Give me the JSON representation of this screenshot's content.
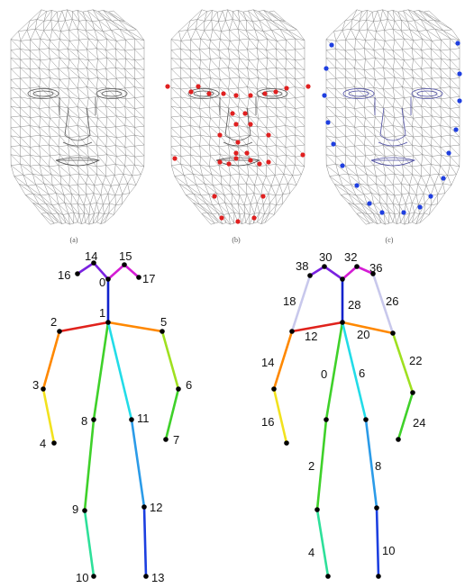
{
  "face_panels": [
    {
      "caption": "(a)",
      "landmark_color": ""
    },
    {
      "caption": "(b)",
      "landmark_color": "#e02020"
    },
    {
      "caption": "(c)",
      "landmark_color": "#1f3fe0"
    }
  ],
  "skeleton_left": {
    "labels": [
      "0",
      "1",
      "2",
      "3",
      "4",
      "5",
      "6",
      "7",
      "8",
      "9",
      "10",
      "11",
      "12",
      "13",
      "14",
      "15",
      "16",
      "17"
    ]
  },
  "skeleton_right": {
    "labels": [
      "0",
      "2",
      "4",
      "6",
      "8",
      "10",
      "12",
      "14",
      "16",
      "18",
      "20",
      "22",
      "24",
      "26",
      "28",
      "30",
      "32",
      "36",
      "38"
    ]
  },
  "colors": {
    "mesh": "#8a8a8a",
    "mesh_dark": "#555555",
    "joint": "#000000",
    "limb_red": "#e0221c",
    "limb_orange": "#ff8800",
    "limb_yellow": "#f2e21e",
    "limb_lime": "#9fe020",
    "limb_green": "#3fd12a",
    "limb_mint": "#2ee09a",
    "limb_cyan": "#22dce8",
    "limb_sky": "#2b9be8",
    "limb_blue": "#1c3fe0",
    "limb_navy": "#1022cc",
    "limb_purple": "#7a22e0",
    "limb_magenta": "#d41cd4",
    "limb_lavender": "#c8c8ec"
  }
}
